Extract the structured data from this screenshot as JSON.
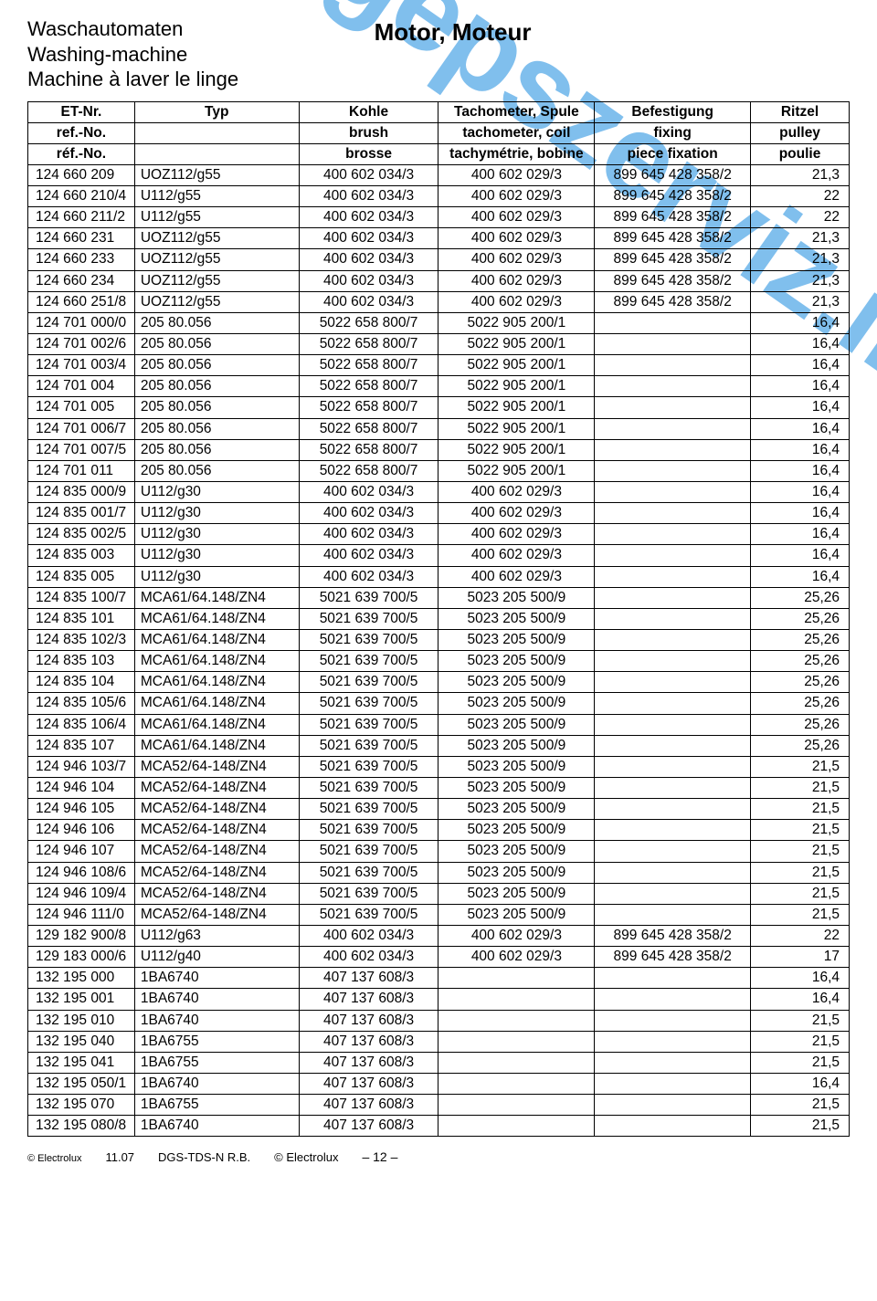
{
  "header": {
    "line1": "Waschautomaten",
    "line2": "Washing-machine",
    "line3": "Machine à laver le linge",
    "center": "Motor, Moteur"
  },
  "watermark": "www.mosogepszerviz.info",
  "table": {
    "head": [
      [
        "ET-Nr.",
        "Typ",
        "Kohle",
        "Tachometer, Spule",
        "Befestigung",
        "Ritzel"
      ],
      [
        "ref.-No.",
        "",
        "brush",
        "tachometer, coil",
        "fixing",
        "pulley"
      ],
      [
        "réf.-No.",
        "",
        "brosse",
        "tachymétrie, bobine",
        "piece fixation",
        "poulie"
      ]
    ],
    "rows": [
      [
        "124 660 209",
        "UOZ112/g55",
        "400 602 034/3",
        "400 602 029/3",
        "899 645 428 358/2",
        "21,3"
      ],
      [
        "124 660 210/4",
        "U112/g55",
        "400 602 034/3",
        "400 602 029/3",
        "899 645 428 358/2",
        "22"
      ],
      [
        "124 660 211/2",
        "U112/g55",
        "400 602 034/3",
        "400 602 029/3",
        "899 645 428 358/2",
        "22"
      ],
      [
        "124 660 231",
        "UOZ112/g55",
        "400 602 034/3",
        "400 602 029/3",
        "899 645 428 358/2",
        "21,3"
      ],
      [
        "124 660 233",
        "UOZ112/g55",
        "400 602 034/3",
        "400 602 029/3",
        "899 645 428 358/2",
        "21,3"
      ],
      [
        "124 660 234",
        "UOZ112/g55",
        "400 602 034/3",
        "400 602 029/3",
        "899 645 428 358/2",
        "21,3"
      ],
      [
        "124 660 251/8",
        "UOZ112/g55",
        "400 602 034/3",
        "400 602 029/3",
        "899 645 428 358/2",
        "21,3"
      ],
      [
        "124 701 000/0",
        "205 80.056",
        "5022 658 800/7",
        "5022 905 200/1",
        "",
        "16,4"
      ],
      [
        "124 701 002/6",
        "205 80.056",
        "5022 658 800/7",
        "5022 905 200/1",
        "",
        "16,4"
      ],
      [
        "124 701 003/4",
        "205 80.056",
        "5022 658 800/7",
        "5022 905 200/1",
        "",
        "16,4"
      ],
      [
        "124 701 004",
        "205 80.056",
        "5022 658 800/7",
        "5022 905 200/1",
        "",
        "16,4"
      ],
      [
        "124 701 005",
        "205 80.056",
        "5022 658 800/7",
        "5022 905 200/1",
        "",
        "16,4"
      ],
      [
        "124 701 006/7",
        "205 80.056",
        "5022 658 800/7",
        "5022 905 200/1",
        "",
        "16,4"
      ],
      [
        "124 701 007/5",
        "205 80.056",
        "5022 658 800/7",
        "5022 905 200/1",
        "",
        "16,4"
      ],
      [
        "124 701 011",
        "205 80.056",
        "5022 658 800/7",
        "5022 905 200/1",
        "",
        "16,4"
      ],
      [
        "124 835 000/9",
        "U112/g30",
        "400 602 034/3",
        "400 602 029/3",
        "",
        "16,4"
      ],
      [
        "124 835 001/7",
        "U112/g30",
        "400 602 034/3",
        "400 602 029/3",
        "",
        "16,4"
      ],
      [
        "124 835 002/5",
        "U112/g30",
        "400 602 034/3",
        "400 602 029/3",
        "",
        "16,4"
      ],
      [
        "124 835 003",
        "U112/g30",
        "400 602 034/3",
        "400 602 029/3",
        "",
        "16,4"
      ],
      [
        "124 835 005",
        "U112/g30",
        "400 602 034/3",
        "400 602 029/3",
        "",
        "16,4"
      ],
      [
        "124 835 100/7",
        "MCA61/64.148/ZN4",
        "5021 639 700/5",
        "5023 205 500/9",
        "",
        "25,26"
      ],
      [
        "124 835 101",
        "MCA61/64.148/ZN4",
        "5021 639 700/5",
        "5023 205 500/9",
        "",
        "25,26"
      ],
      [
        "124 835 102/3",
        "MCA61/64.148/ZN4",
        "5021 639 700/5",
        "5023 205 500/9",
        "",
        "25,26"
      ],
      [
        "124 835 103",
        "MCA61/64.148/ZN4",
        "5021 639 700/5",
        "5023 205 500/9",
        "",
        "25,26"
      ],
      [
        "124 835 104",
        "MCA61/64.148/ZN4",
        "5021 639 700/5",
        "5023 205 500/9",
        "",
        "25,26"
      ],
      [
        "124 835 105/6",
        "MCA61/64.148/ZN4",
        "5021 639 700/5",
        "5023 205 500/9",
        "",
        "25,26"
      ],
      [
        "124 835 106/4",
        "MCA61/64.148/ZN4",
        "5021 639 700/5",
        "5023 205 500/9",
        "",
        "25,26"
      ],
      [
        "124 835 107",
        "MCA61/64.148/ZN4",
        "5021 639 700/5",
        "5023 205 500/9",
        "",
        "25,26"
      ],
      [
        "124 946 103/7",
        "MCA52/64-148/ZN4",
        "5021 639 700/5",
        "5023 205 500/9",
        "",
        "21,5"
      ],
      [
        "124 946 104",
        "MCA52/64-148/ZN4",
        "5021 639 700/5",
        "5023 205 500/9",
        "",
        "21,5"
      ],
      [
        "124 946 105",
        "MCA52/64-148/ZN4",
        "5021 639 700/5",
        "5023 205 500/9",
        "",
        "21,5"
      ],
      [
        "124 946 106",
        "MCA52/64-148/ZN4",
        "5021 639 700/5",
        "5023 205 500/9",
        "",
        "21,5"
      ],
      [
        "124 946 107",
        "MCA52/64-148/ZN4",
        "5021 639 700/5",
        "5023 205 500/9",
        "",
        "21,5"
      ],
      [
        "124 946 108/6",
        "MCA52/64-148/ZN4",
        "5021 639 700/5",
        "5023 205 500/9",
        "",
        "21,5"
      ],
      [
        "124 946 109/4",
        "MCA52/64-148/ZN4",
        "5021 639 700/5",
        "5023 205 500/9",
        "",
        "21,5"
      ],
      [
        "124 946 111/0",
        "MCA52/64-148/ZN4",
        "5021 639 700/5",
        "5023 205 500/9",
        "",
        "21,5"
      ],
      [
        "129 182 900/8",
        "U112/g63",
        "400 602 034/3",
        "400 602 029/3",
        "899 645 428 358/2",
        "22"
      ],
      [
        "129 183 000/6",
        "U112/g40",
        "400 602 034/3",
        "400 602 029/3",
        "899 645 428 358/2",
        "17"
      ],
      [
        "132 195 000",
        "1BA6740",
        "407 137 608/3",
        "",
        "",
        "16,4"
      ],
      [
        "132 195 001",
        "1BA6740",
        "407 137 608/3",
        "",
        "",
        "16,4"
      ],
      [
        "132 195 010",
        "1BA6740",
        "407 137 608/3",
        "",
        "",
        "21,5"
      ],
      [
        "132 195 040",
        "1BA6755",
        "407 137 608/3",
        "",
        "",
        "21,5"
      ],
      [
        "132 195 041",
        "1BA6755",
        "407 137 608/3",
        "",
        "",
        "21,5"
      ],
      [
        "132 195 050/1",
        "1BA6740",
        "407 137 608/3",
        "",
        "",
        "16,4"
      ],
      [
        "132 195 070",
        "1BA6755",
        "407 137 608/3",
        "",
        "",
        "21,5"
      ],
      [
        "132 195 080/8",
        "1BA6740",
        "407 137 608/3",
        "",
        "",
        "21,5"
      ]
    ]
  },
  "footer": {
    "copyline": "© Electrolux",
    "date": "11.07",
    "dept": "DGS-TDS-N R.B.",
    "brand": "© Electrolux",
    "page": "– 12 –"
  }
}
